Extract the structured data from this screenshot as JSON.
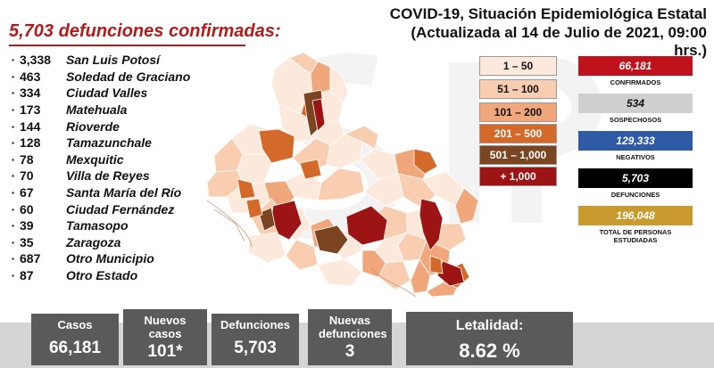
{
  "header": {
    "title": "COVID-19, Situación Epidemiológica Estatal",
    "subtitle": "(Actualizada al 14 de Julio de 2021, 09:00 hrs.)"
  },
  "summary_title": "5,703 defunciones confirmadas:",
  "municipalities": [
    {
      "count": "3,338",
      "name": "San Luis Potosí"
    },
    {
      "count": "463",
      "name": "Soledad de Graciano"
    },
    {
      "count": "334",
      "name": "Ciudad Valles"
    },
    {
      "count": "173",
      "name": "Matehuala"
    },
    {
      "count": "144",
      "name": "Rioverde"
    },
    {
      "count": "128",
      "name": "Tamazunchale"
    },
    {
      "count": "78",
      "name": "Mexquitic"
    },
    {
      "count": "70",
      "name": "Villa de Reyes"
    },
    {
      "count": "67",
      "name": "Santa María del Río"
    },
    {
      "count": "60",
      "name": "Ciudad Fernández"
    },
    {
      "count": "39",
      "name": "Tamasopo"
    },
    {
      "count": "35",
      "name": "Zaragoza"
    },
    {
      "count": "687",
      "name": "Otro Municipio"
    },
    {
      "count": "87",
      "name": "Otro Estado"
    }
  ],
  "legend": [
    {
      "label": "1 – 50",
      "color": "#fde9dc",
      "text_color": "#111111"
    },
    {
      "label": "51 – 100",
      "color": "#f8cdb0",
      "text_color": "#111111"
    },
    {
      "label": "101 – 200",
      "color": "#f0a77c",
      "text_color": "#111111"
    },
    {
      "label": "201 – 500",
      "color": "#d46a2a",
      "text_color": "#ffffff"
    },
    {
      "label": "501 – 1,000",
      "color": "#7a4520",
      "text_color": "#ffffff"
    },
    {
      "label": "+ 1,000",
      "color": "#9c1414",
      "text_color": "#ffffff"
    }
  ],
  "stats": [
    {
      "value": "66,181",
      "label": "CONFIRMADOS",
      "color": "#c0121c",
      "text_color": "#ffffff"
    },
    {
      "value": "534",
      "label": "SOSPECHOSOS",
      "color": "#cfcfcf",
      "text_color": "#111111"
    },
    {
      "value": "129,333",
      "label": "NEGATIVOS",
      "color": "#2f5aa6",
      "text_color": "#ffffff"
    },
    {
      "value": "5,703",
      "label": "DEFUNCIONES",
      "color": "#000000",
      "text_color": "#ffffff"
    },
    {
      "value": "196,048",
      "label": "TOTAL DE PERSONAS ESTUDIADAS",
      "color": "#c99a2e",
      "text_color": "#ffffff"
    }
  ],
  "cards": [
    {
      "label": "Casos",
      "value": "66,181"
    },
    {
      "label": "Nuevos casos",
      "value": "101*"
    },
    {
      "label": "Defunciones",
      "value": "5,703"
    },
    {
      "label": "Nuevas defunciones",
      "value": "3"
    },
    {
      "label": "Letalidad:",
      "value": "8.62 %"
    }
  ],
  "chart_data": {
    "type": "choropleth map",
    "title": "COVID-19, Situación Epidemiológica Estatal",
    "subtitle": "(Actualizada al 14 de Julio de 2021, 09:00 hrs.)",
    "legend_bins": [
      "1 – 50",
      "51 – 100",
      "101 – 200",
      "201 – 500",
      "501 – 1,000",
      "+ 1,000"
    ],
    "deaths_by_municipality": [
      {
        "name": "San Luis Potosí",
        "value": 3338
      },
      {
        "name": "Soledad de Graciano",
        "value": 463
      },
      {
        "name": "Ciudad Valles",
        "value": 334
      },
      {
        "name": "Matehuala",
        "value": 173
      },
      {
        "name": "Rioverde",
        "value": 144
      },
      {
        "name": "Tamazunchale",
        "value": 128
      },
      {
        "name": "Mexquitic",
        "value": 78
      },
      {
        "name": "Villa de Reyes",
        "value": 70
      },
      {
        "name": "Santa María del Río",
        "value": 67
      },
      {
        "name": "Ciudad Fernández",
        "value": 60
      },
      {
        "name": "Tamasopo",
        "value": 39
      },
      {
        "name": "Zaragoza",
        "value": 35
      },
      {
        "name": "Otro Municipio",
        "value": 687
      },
      {
        "name": "Otro Estado",
        "value": 87
      }
    ],
    "totals": {
      "confirmados": 66181,
      "sospechosos": 534,
      "negativos": 129333,
      "defunciones": 5703,
      "total_personas_estudiadas": 196048
    },
    "daily": {
      "casos": 66181,
      "nuevos_casos": 101,
      "defunciones": 5703,
      "nuevas_defunciones": 3,
      "letalidad_percent": 8.62
    }
  }
}
